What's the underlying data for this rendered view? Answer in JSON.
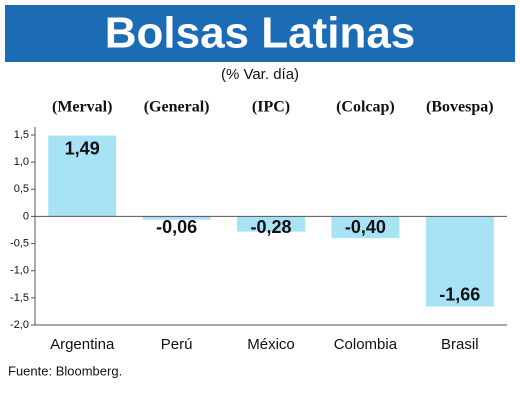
{
  "chart_data": {
    "type": "bar",
    "title": "Bolsas Latinas",
    "subtitle": "(% Var. día)",
    "index_names": [
      "(Merval)",
      "(General)",
      "(IPC)",
      "(Colcap)",
      "(Bovespa)"
    ],
    "categories": [
      "Argentina",
      "Perú",
      "México",
      "Colombia",
      "Brasil"
    ],
    "values": [
      1.49,
      -0.06,
      -0.28,
      -0.4,
      -1.66
    ],
    "value_labels": [
      "1,49",
      "-0,06",
      "-0,28",
      "-0,40",
      "-1,66"
    ],
    "color": "#a8e3f5",
    "header_color": "#1c6bb5",
    "ylim": [
      -2.0,
      1.5
    ],
    "yticks": [
      {
        "value": 1.5,
        "label": "1,5"
      },
      {
        "value": 1.0,
        "label": "1,0"
      },
      {
        "value": 0.5,
        "label": "0,5"
      },
      0,
      {
        "value": -0.5,
        "label": "-0,5"
      },
      {
        "value": -1.0,
        "label": "-1,0"
      },
      {
        "value": -1.5,
        "label": "-1,5"
      },
      {
        "value": -2.0,
        "label": "-2,0"
      }
    ],
    "source": "Fuente: Bloomberg."
  }
}
